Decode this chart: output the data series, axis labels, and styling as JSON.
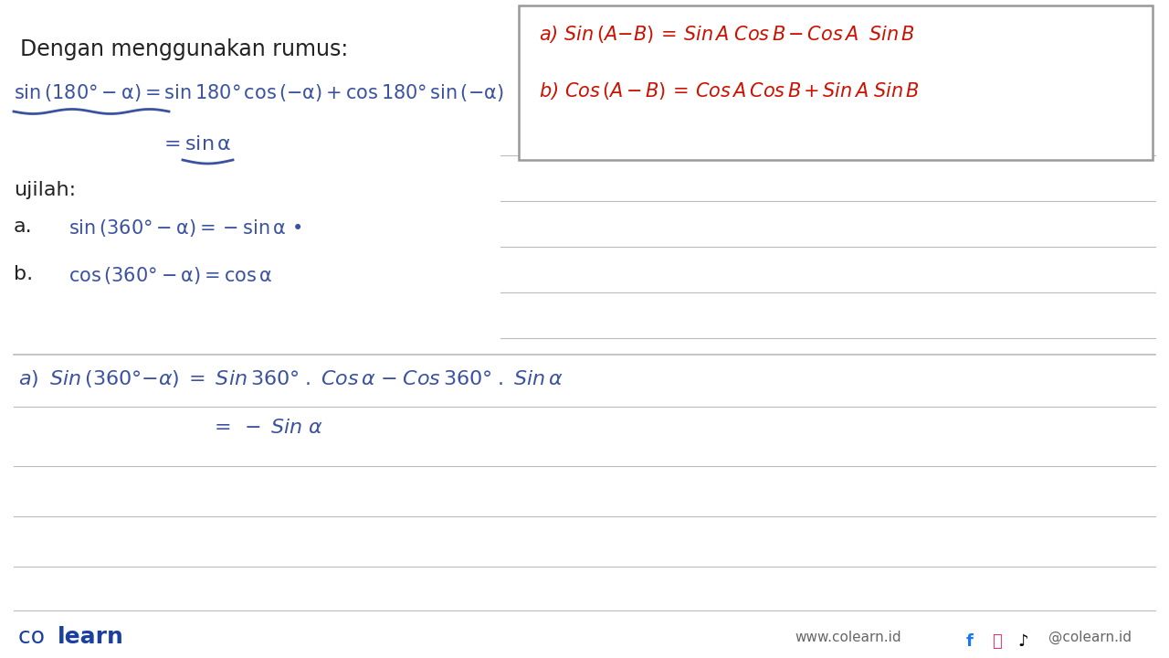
{
  "bg_color": "#ffffff",
  "title_text": "Dengan menggunakan rumus:",
  "ujilah": "ujilah:",
  "a_label": "a.",
  "b_label": "b.",
  "footer_center": "www.colearn.id",
  "footer_right": "@colearn.id",
  "text_color": "#222222",
  "blue_color": "#3a52a0",
  "red_color": "#cc1100",
  "line_color": "#bbbbbb",
  "footer_blue": "#1a3fa0",
  "box_border": "#999999",
  "figwidth": 12.8,
  "figheight": 7.2,
  "dpi": 100
}
